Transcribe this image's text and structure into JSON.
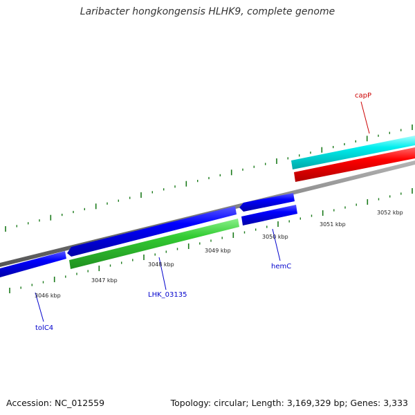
{
  "title": "Laribacter hongkongensis HLHK9, complete genome",
  "accession": "Accession: NC_012559",
  "summary": "Topology: circular; Length: 3,169,329 bp; Genes: 3,333",
  "ticks": {
    "labels": [
      "3046 kbp",
      "3047 kbp",
      "3048 kbp",
      "3049 kbp",
      "3050 kbp",
      "3051 kbp",
      "3052 kbp"
    ]
  },
  "genes": [
    {
      "name": "tolC4",
      "color": "#0000cc"
    },
    {
      "name": "LHK_03135",
      "color": "#0000cc"
    },
    {
      "name": "hemC",
      "color": "#0000cc"
    },
    {
      "name": "capP",
      "color": "#cc0000"
    }
  ],
  "colors": {
    "backbone": "#7f7f7f",
    "tick": "#1a7a1a",
    "cds_reverse": "#0000ff",
    "cds_forward": "#ff0000",
    "rna": "#33cc33",
    "other": "#00eeee"
  }
}
